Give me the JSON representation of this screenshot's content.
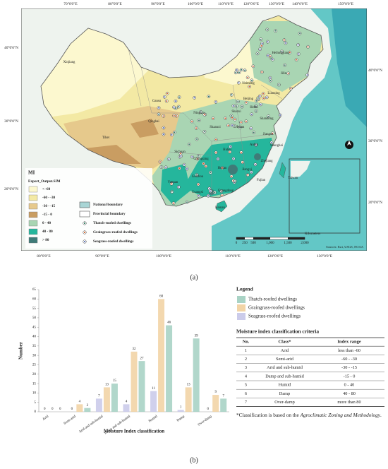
{
  "map": {
    "lon_top": [
      "70°0'0\"E",
      "80°0'0\"E",
      "90°0'0\"E",
      "100°0'0\"E",
      "110°0'0\"E",
      "120°0'0\"E",
      "130°0'0\"E",
      "140°0'0\"E",
      "150°0'0\"E"
    ],
    "lon_bottom": [
      "80°0'0\"E",
      "90°0'0\"E",
      "100°0'0\"E",
      "110°0'0\"E",
      "120°0'0\"E",
      "130°0'0\"E"
    ],
    "lat_left": [
      "40°0'0\"N",
      "30°0'0\"N",
      "20°0'0\"N"
    ],
    "lat_right": [
      "40°0'0\"N",
      "30°0'0\"N",
      "20°0'0\"N"
    ],
    "places": [
      "Xinjiang",
      "Tibet",
      "Qinghai",
      "Gansu",
      "Neimeng",
      "Heilongjiang",
      "Jilin",
      "Liaoning",
      "Beijing",
      "Hebei",
      "Shanxi",
      "Shandong",
      "Ningxia",
      "Shaanxi",
      "Henan",
      "Jiangsu",
      "Anhui",
      "Shanghai",
      "Hubei",
      "Sichuan",
      "Chongqing",
      "Zhejiang",
      "Hunan",
      "Jiangxi",
      "Guizhou",
      "Fujian",
      "Yunnan",
      "Guangxi",
      "Guangdong",
      "Taiwan",
      "Hainan"
    ],
    "legend_title": "MI",
    "legend_subtitle": "Export_Output.SIM",
    "classes": [
      {
        "label": "< -60",
        "color": "#fcf8cf"
      },
      {
        "label": "-60 - -30",
        "color": "#f3e9a4"
      },
      {
        "label": "-30 - -15",
        "color": "#e6c98c"
      },
      {
        "label": "-15 - 0",
        "color": "#c99d62"
      },
      {
        "label": "0 - 40",
        "color": "#a9d5b3"
      },
      {
        "label": "40 - 80",
        "color": "#25b69c"
      },
      {
        "label": "> 80",
        "color": "#3f7b78"
      }
    ],
    "boundaries": [
      "National boundary",
      "Provincial boundary"
    ],
    "dwellings": [
      "Thatch-roofed dwellings",
      "Graingrass-roofed dwellings",
      "Seagrass-roofed dwellings"
    ],
    "scale": [
      "0",
      "250",
      "500",
      "1,000",
      "1,500",
      "2,000"
    ],
    "scale_unit": "Kilometers",
    "credit": "Sources: Esri, USGS, NOAA",
    "panel": "(a)"
  },
  "chart_data": {
    "type": "bar",
    "y_label": "Number",
    "x_label": "Moisture Index classification",
    "legend_title": "Legend",
    "categories": [
      "Arid",
      "Semi-arid",
      "Arid and sub-humid",
      "Damp and sub-humid",
      "Humid",
      "Damp",
      "Over-damp"
    ],
    "series": [
      {
        "name": "Seagrass-roofed dwellings",
        "color": "#cbcbea",
        "values": [
          0,
          0,
          7,
          4,
          11,
          1,
          0
        ]
      },
      {
        "name": "Graingrass-roofed dwellings",
        "color": "#f2d4a6",
        "values": [
          0,
          4,
          13,
          32,
          60,
          13,
          9
        ]
      },
      {
        "name": "Thatch-roofed dwellings",
        "color": "#a9d3c5",
        "values": [
          0,
          2,
          15,
          27,
          46,
          39,
          7
        ]
      }
    ],
    "legend_order": [
      2,
      1,
      0
    ],
    "ylim": [
      0,
      65
    ],
    "yticks": [
      0,
      5,
      10,
      15,
      20,
      25,
      30,
      35,
      40,
      45,
      50,
      55,
      60,
      65
    ],
    "panel": "(b)"
  },
  "table": {
    "title": "Moisture index classification criteria",
    "header": [
      "No.",
      "Class*",
      "Index range"
    ],
    "rows": [
      [
        "1",
        "Arid",
        "less than -60"
      ],
      [
        "2",
        "Semi-arid",
        "-60 - -30"
      ],
      [
        "3",
        "Arid and sub-humid",
        "-30 - -15"
      ],
      [
        "4",
        "Damp and sub-humid",
        "-15 - 0"
      ],
      [
        "5",
        "Humid",
        "0 - 40"
      ],
      [
        "6",
        "Damp",
        "40 - 80"
      ],
      [
        "7",
        "Over-damp",
        "more than 80"
      ]
    ],
    "footnote": [
      "*Classification is based on the ",
      "Agroclimatic Zoning and Methodology",
      "."
    ]
  }
}
